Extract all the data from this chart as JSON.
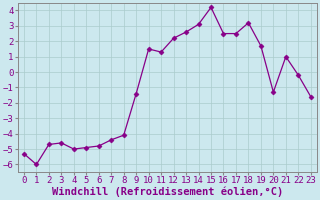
{
  "x": [
    0,
    1,
    2,
    3,
    4,
    5,
    6,
    7,
    8,
    9,
    10,
    11,
    12,
    13,
    14,
    15,
    16,
    17,
    18,
    19,
    20,
    21,
    22,
    23
  ],
  "y": [
    -5.3,
    -6.0,
    -4.7,
    -4.6,
    -5.0,
    -4.9,
    -4.8,
    -4.4,
    -4.1,
    -1.4,
    1.5,
    1.3,
    2.2,
    2.6,
    3.1,
    4.2,
    2.5,
    2.5,
    3.2,
    1.7,
    -1.3,
    1.0,
    -0.2,
    -1.6
  ],
  "line_color": "#880088",
  "marker": "D",
  "marker_size": 2.5,
  "bg_color": "#cce8ee",
  "grid_color": "#aacccc",
  "xlim": [
    -0.5,
    23.5
  ],
  "ylim": [
    -6.5,
    4.5
  ],
  "yticks": [
    -6,
    -5,
    -4,
    -3,
    -2,
    -1,
    0,
    1,
    2,
    3,
    4
  ],
  "xticks": [
    0,
    1,
    2,
    3,
    4,
    5,
    6,
    7,
    8,
    9,
    10,
    11,
    12,
    13,
    14,
    15,
    16,
    17,
    18,
    19,
    20,
    21,
    22,
    23
  ],
  "tick_fontsize": 6.5,
  "xlabel": "Windchill (Refroidissement éolien,°C)",
  "xlabel_color": "#880088",
  "xlabel_fontsize": 7.5,
  "spine_color": "#888888"
}
